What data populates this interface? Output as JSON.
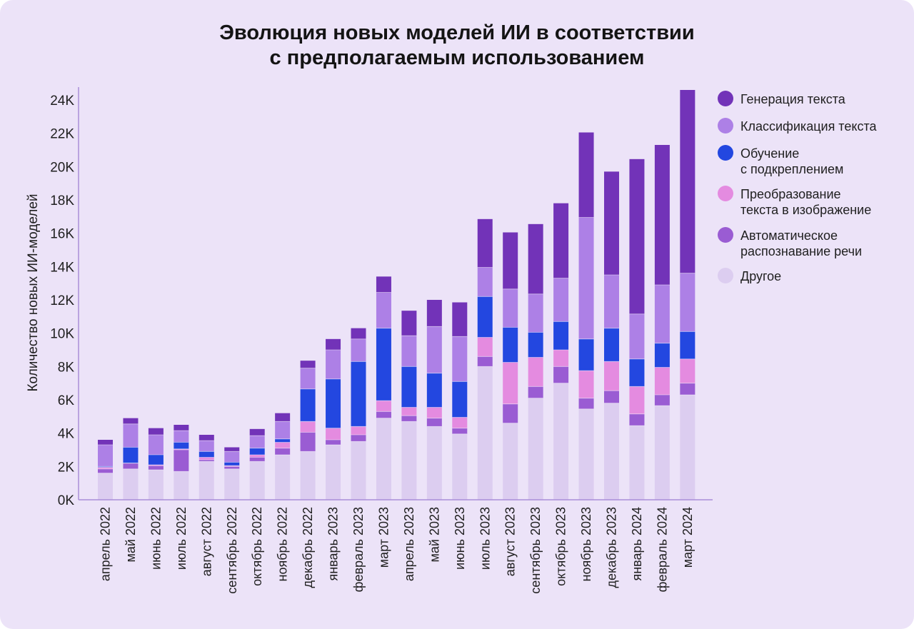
{
  "chart_data": {
    "type": "bar",
    "stacked": true,
    "title": [
      "Эволюция новых моделей ИИ в соответствии",
      "с предполагаемым использованием"
    ],
    "xlabel": "",
    "ylabel": "Количество новых ИИ-моделей",
    "ylim": [
      0,
      24000
    ],
    "yticks": [
      0,
      2000,
      4000,
      6000,
      8000,
      10000,
      12000,
      14000,
      16000,
      18000,
      20000,
      22000,
      24000
    ],
    "ytick_labels": [
      "0K",
      "2K",
      "4K",
      "6K",
      "8K",
      "10K",
      "12K",
      "14K",
      "16K",
      "18K",
      "20K",
      "22K",
      "24K"
    ],
    "grid": false,
    "legend_position": "right",
    "categories": [
      "апрель 2022",
      "май 2022",
      "июнь 2022",
      "июль 2022",
      "август 2022",
      "сентябрь 2022",
      "октябрь 2022",
      "ноябрь 2022",
      "декабрь 2022",
      "январь 2023",
      "февраль 2023",
      "март 2023",
      "апрель 2023",
      "май 2023",
      "июнь 2023",
      "июль 2023",
      "август 2023",
      "сентябрь 2023",
      "октябрь 2023",
      "ноябрь 2023",
      "декабрь 2023",
      "январь 2024",
      "февраль 2024",
      "март 2024"
    ],
    "series": [
      {
        "name": "Другое",
        "legend": [
          "Другое"
        ],
        "color": "#dccdf0",
        "values": [
          1600,
          1850,
          1800,
          1700,
          2300,
          1850,
          2300,
          2700,
          2900,
          3300,
          3500,
          4900,
          4700,
          4400,
          3950,
          8000,
          4600,
          6100,
          7000,
          5450,
          5800,
          4450,
          5650,
          6300
        ]
      },
      {
        "name": "Автоматическое распознавание речи",
        "legend": [
          "Автоматическое",
          "распознавание речи"
        ],
        "color": "#9a5cd3",
        "values": [
          250,
          350,
          250,
          1300,
          100,
          150,
          250,
          400,
          1150,
          300,
          400,
          400,
          350,
          500,
          350,
          600,
          1150,
          700,
          1000,
          650,
          750,
          700,
          650,
          700
        ]
      },
      {
        "name": "Преобразование текста в изображение",
        "legend": [
          "Преобразование",
          "текста в изображение"
        ],
        "color": "#e48be0",
        "values": [
          100,
          0,
          50,
          50,
          150,
          50,
          150,
          350,
          650,
          700,
          500,
          650,
          500,
          650,
          650,
          1150,
          2500,
          1750,
          1000,
          1650,
          1750,
          1650,
          1650,
          1450
        ]
      },
      {
        "name": "Обучение с подкреплением",
        "legend": [
          "Обучение",
          "с подкреплением"
        ],
        "color": "#2347e0",
        "values": [
          50,
          950,
          600,
          400,
          350,
          200,
          400,
          200,
          1950,
          2950,
          3900,
          4350,
          2450,
          2050,
          2150,
          2450,
          2100,
          1500,
          1700,
          1900,
          2000,
          1650,
          1450,
          1650
        ]
      },
      {
        "name": "Классификация текста",
        "legend": [
          "Классификация текста"
        ],
        "color": "#ad80e6",
        "values": [
          1300,
          1400,
          1200,
          700,
          650,
          650,
          750,
          1050,
          1250,
          1750,
          1350,
          2150,
          1850,
          2800,
          2700,
          1750,
          2300,
          2300,
          2600,
          7300,
          3200,
          2700,
          3500,
          3500
        ]
      },
      {
        "name": "Генерация текста",
        "legend": [
          "Генерация текста"
        ],
        "color": "#7233b8",
        "values": [
          300,
          350,
          400,
          350,
          350,
          250,
          400,
          500,
          450,
          650,
          650,
          950,
          1500,
          1600,
          2050,
          2900,
          3400,
          4200,
          4500,
          5100,
          6200,
          9300,
          8400,
          11000
        ]
      }
    ],
    "legend_order": [
      5,
      4,
      3,
      2,
      1,
      0
    ]
  }
}
